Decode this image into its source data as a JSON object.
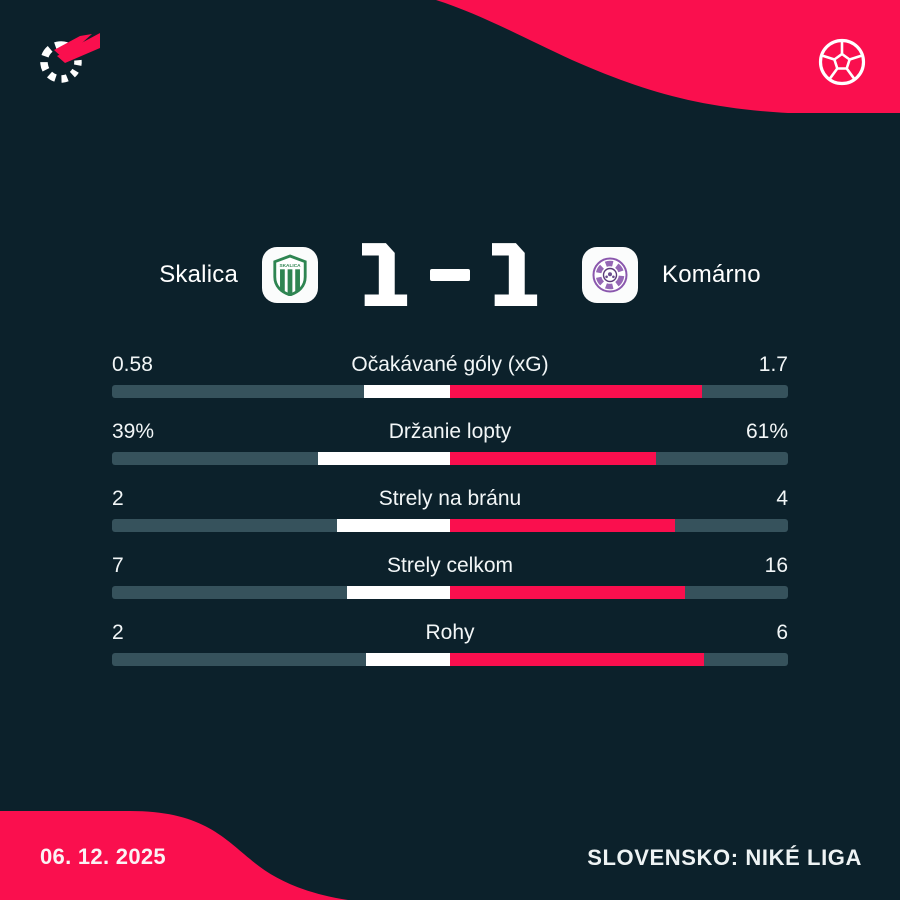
{
  "colors": {
    "background": "#0c212b",
    "accent_pink": "#fa0f4e",
    "bar_track": "#36525c",
    "bar_home_fill": "#ffffff",
    "bar_away_fill": "#fa0f4e",
    "text": "#f4f7f8",
    "skalica_green": "#2f8552",
    "komarno_purple": "#8a57ad"
  },
  "match": {
    "home_name": "Skalica",
    "away_name": "Komárno",
    "home_score": "1",
    "away_score": "1",
    "score_separator": "-"
  },
  "chart_data": {
    "type": "bar",
    "subtype": "head-to-head horizontal stat comparison, each side filled from center proportional to its share of the total",
    "title": "Skalica 1 - 1 Komárno",
    "categories": [
      "Očakávané góly (xG)",
      "Držanie lopty",
      "Strely na bránu",
      "Strely celkom",
      "Rohy"
    ],
    "series": [
      {
        "name": "Skalica",
        "color": "#ffffff",
        "values": [
          0.58,
          39,
          2,
          7,
          2
        ],
        "labels": [
          "0.58",
          "39%",
          "2",
          "7",
          "2"
        ]
      },
      {
        "name": "Komárno",
        "color": "#fa0f4e",
        "values": [
          1.7,
          61,
          4,
          16,
          6
        ],
        "labels": [
          "1.7",
          "61%",
          "4",
          "16",
          "6"
        ]
      }
    ],
    "legend_position": "none",
    "grid": false,
    "track_color": "#36525c"
  },
  "footer": {
    "date": "06. 12. 2025",
    "league": "SLOVENSKO: NIKÉ LIGA"
  },
  "icons": {
    "top_left": "flashscore-logo",
    "top_right": "soccer-ball",
    "home_crest": "skalica-crest",
    "away_crest": "komarno-crest"
  }
}
